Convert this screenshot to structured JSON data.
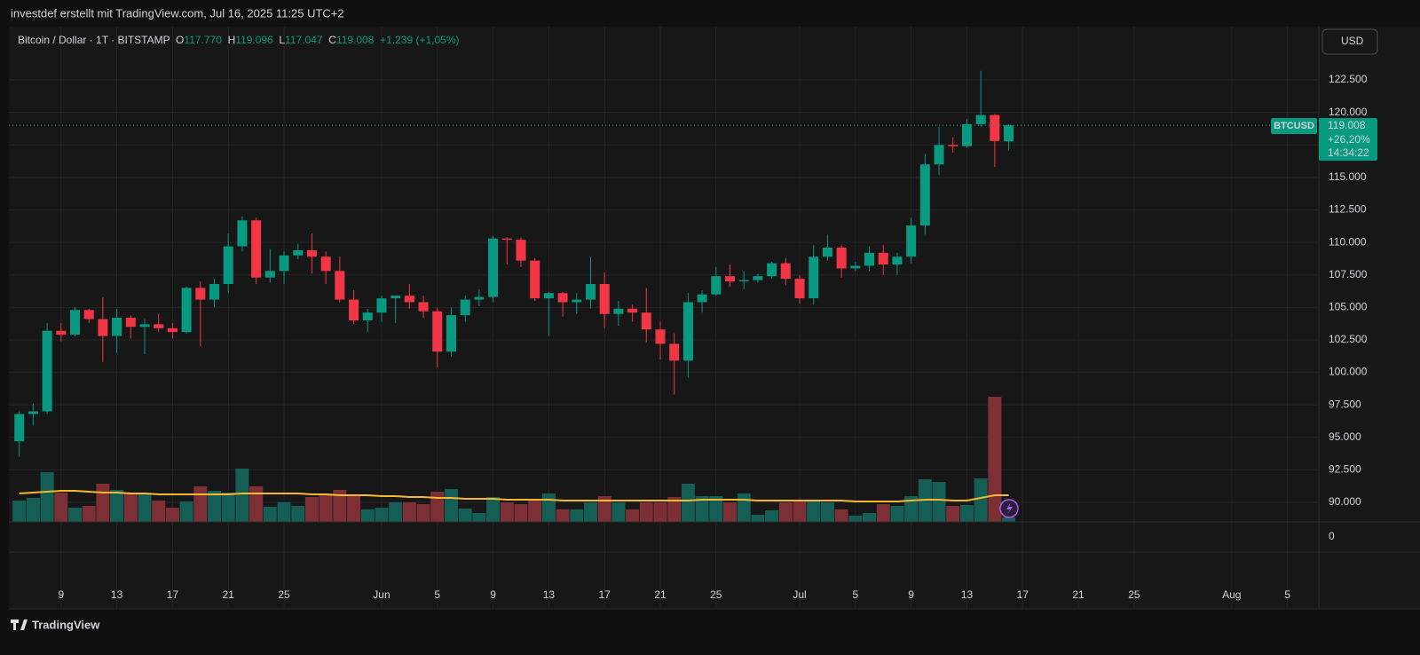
{
  "header": "investdef erstellt mit TradingView.com, Jul 16, 2025 11:25 UTC+2",
  "legend": {
    "symbol": "Bitcoin / Dollar · 1T · BITSTAMP",
    "items": [
      {
        "label": "O",
        "value": "117.770"
      },
      {
        "label": "H",
        "value": "119.096"
      },
      {
        "label": "L",
        "value": "117.047"
      },
      {
        "label": "C",
        "value": "119.008"
      }
    ],
    "change": "+1.239 (+1,05%)"
  },
  "currency_button": "USD",
  "price_tag": {
    "symbol": "BTCUSD",
    "price": "119.008",
    "change": "+26,20%",
    "countdown": "14:34:22"
  },
  "footer": "TradingView",
  "chart_data": {
    "type": "candlestick",
    "x": [
      "2025-05-06",
      "2025-05-07",
      "2025-05-08",
      "2025-05-09",
      "2025-05-10",
      "2025-05-11",
      "2025-05-12",
      "2025-05-13",
      "2025-05-14",
      "2025-05-15",
      "2025-05-16",
      "2025-05-17",
      "2025-05-18",
      "2025-05-19",
      "2025-05-20",
      "2025-05-21",
      "2025-05-22",
      "2025-05-23",
      "2025-05-24",
      "2025-05-25",
      "2025-05-26",
      "2025-05-27",
      "2025-05-28",
      "2025-05-29",
      "2025-05-30",
      "2025-05-31",
      "2025-06-01",
      "2025-06-02",
      "2025-06-03",
      "2025-06-04",
      "2025-06-05",
      "2025-06-06",
      "2025-06-07",
      "2025-06-08",
      "2025-06-09",
      "2025-06-10",
      "2025-06-11",
      "2025-06-12",
      "2025-06-13",
      "2025-06-14",
      "2025-06-15",
      "2025-06-16",
      "2025-06-17",
      "2025-06-18",
      "2025-06-19",
      "2025-06-20",
      "2025-06-21",
      "2025-06-22",
      "2025-06-23",
      "2025-06-24",
      "2025-06-25",
      "2025-06-26",
      "2025-06-27",
      "2025-06-28",
      "2025-06-29",
      "2025-06-30",
      "2025-07-01",
      "2025-07-02",
      "2025-07-03",
      "2025-07-04",
      "2025-07-05",
      "2025-07-06",
      "2025-07-07",
      "2025-07-08",
      "2025-07-09",
      "2025-07-10",
      "2025-07-11",
      "2025-07-12",
      "2025-07-13",
      "2025-07-14",
      "2025-07-15",
      "2025-07-16"
    ],
    "open": [
      94700,
      96800,
      97000,
      103200,
      102900,
      104800,
      104100,
      102800,
      104200,
      103500,
      103700,
      103400,
      103100,
      106500,
      105600,
      106800,
      109700,
      111700,
      107300,
      107800,
      109000,
      109400,
      108900,
      107800,
      105600,
      104000,
      104600,
      105700,
      105900,
      105400,
      104700,
      101600,
      104400,
      105600,
      105800,
      110300,
      110200,
      108600,
      105700,
      106100,
      105400,
      105600,
      106800,
      104500,
      104900,
      104600,
      103300,
      102200,
      100900,
      105400,
      106000,
      107400,
      107000,
      107100,
      107400,
      108400,
      107200,
      105700,
      108900,
      109600,
      108000,
      108200,
      109200,
      108300,
      108900,
      111300,
      116000,
      117500,
      117400,
      119100,
      119800,
      117770
    ],
    "high": [
      97000,
      97600,
      103800,
      103800,
      105000,
      104900,
      105800,
      104900,
      104400,
      104100,
      104500,
      103800,
      106600,
      107000,
      107200,
      110700,
      112000,
      111900,
      109500,
      109300,
      109900,
      110700,
      109300,
      108900,
      106300,
      104900,
      105900,
      105900,
      106800,
      105900,
      105000,
      105000,
      105900,
      106400,
      110500,
      110400,
      110400,
      108800,
      106200,
      106200,
      106100,
      108900,
      107700,
      105500,
      105200,
      106500,
      103900,
      103000,
      106100,
      106300,
      108100,
      108300,
      107800,
      107600,
      108500,
      108800,
      107500,
      109800,
      110600,
      109800,
      108500,
      109700,
      109800,
      109200,
      111900,
      116800,
      118900,
      118100,
      119500,
      123200,
      119900,
      119096
    ],
    "low": [
      93500,
      95900,
      96800,
      102400,
      102800,
      103800,
      100800,
      101500,
      102600,
      101400,
      103100,
      102600,
      103000,
      102000,
      105000,
      106100,
      109300,
      106800,
      106900,
      106800,
      108700,
      107600,
      106800,
      105400,
      103700,
      103100,
      103900,
      103800,
      104900,
      104200,
      100400,
      101200,
      103900,
      105100,
      105400,
      108300,
      108100,
      105500,
      102800,
      104300,
      104500,
      104900,
      103400,
      103600,
      103900,
      102300,
      101000,
      98300,
      99600,
      104600,
      105900,
      106600,
      106400,
      106900,
      107200,
      106700,
      105300,
      105200,
      108600,
      107300,
      107800,
      107800,
      107500,
      107500,
      108400,
      110600,
      115200,
      116900,
      117300,
      118900,
      115800,
      117047
    ],
    "close": [
      96800,
      97000,
      103200,
      102900,
      104800,
      104100,
      102800,
      104200,
      103500,
      103700,
      103400,
      103100,
      106500,
      105600,
      106800,
      109700,
      111700,
      107300,
      107800,
      109000,
      109400,
      108900,
      107800,
      105600,
      104000,
      104600,
      105700,
      105900,
      105400,
      104700,
      101600,
      104400,
      105600,
      105800,
      110300,
      110200,
      108600,
      105700,
      106100,
      105400,
      105600,
      106800,
      104500,
      104900,
      104600,
      103300,
      102200,
      100900,
      105400,
      106000,
      107400,
      107000,
      107100,
      107400,
      108400,
      107200,
      105700,
      108900,
      109600,
      108000,
      108200,
      109200,
      108300,
      108900,
      111300,
      116000,
      117500,
      117400,
      119100,
      119800,
      117800,
      119008
    ],
    "volume": [
      24,
      27,
      56,
      33,
      16,
      18,
      43,
      36,
      33,
      33,
      24,
      16,
      23,
      40,
      35,
      33,
      60,
      40,
      17,
      22,
      18,
      28,
      32,
      36,
      30,
      14,
      16,
      22,
      22,
      20,
      34,
      37,
      15,
      10,
      28,
      22,
      20,
      24,
      32,
      14,
      14,
      22,
      29,
      22,
      14,
      22,
      22,
      28,
      43,
      29,
      29,
      22,
      32,
      8,
      13,
      22,
      24,
      24,
      22,
      14,
      7,
      10,
      20,
      18,
      29,
      48,
      45,
      18,
      19,
      49,
      141,
      5
    ],
    "volume_ma": [
      32,
      33,
      34,
      35,
      35,
      34,
      33,
      33,
      32,
      32,
      31,
      31,
      31,
      31,
      31,
      31,
      32,
      32,
      32,
      32,
      32,
      31,
      31,
      30,
      30,
      30,
      29,
      29,
      28,
      28,
      27,
      27,
      26,
      26,
      26,
      25,
      25,
      25,
      25,
      24,
      24,
      24,
      24,
      24,
      24,
      24,
      24,
      24,
      24,
      25,
      25,
      25,
      25,
      24,
      24,
      24,
      24,
      24,
      24,
      24,
      23,
      23,
      23,
      23,
      24,
      25,
      25,
      24,
      24,
      27,
      30,
      30
    ],
    "up_color": "#089981",
    "down_color": "#f23645",
    "up_volume_color": "#155e55",
    "down_volume_color": "#7c3036",
    "ma_color": "#f5b82e",
    "xlim": [
      "2025-05-05",
      "2025-08-07"
    ],
    "ylim": [
      88500,
      126600
    ],
    "volume_lim": [
      0,
      150
    ],
    "pane2_ylim": [
      -1,
      1
    ],
    "pane2_yticks": [
      0
    ],
    "yticks": [
      {
        "value": 90000,
        "label": "90.000"
      },
      {
        "value": 92500,
        "label": "92.500"
      },
      {
        "value": 95000,
        "label": "95.000"
      },
      {
        "value": 97500,
        "label": "97.500"
      },
      {
        "value": 100000,
        "label": "100.000"
      },
      {
        "value": 102500,
        "label": "102.500"
      },
      {
        "value": 105000,
        "label": "105.000"
      },
      {
        "value": 107500,
        "label": "107.500"
      },
      {
        "value": 110000,
        "label": "110.000"
      },
      {
        "value": 112500,
        "label": "112.500"
      },
      {
        "value": 115000,
        "label": "115.000"
      },
      {
        "value": 117500,
        "label": "117.500"
      },
      {
        "value": 120000,
        "label": "120.000"
      },
      {
        "value": 122500,
        "label": "122.500"
      }
    ],
    "xticks": [
      {
        "value": "2025-05-09",
        "label": "9"
      },
      {
        "value": "2025-05-13",
        "label": "13"
      },
      {
        "value": "2025-05-17",
        "label": "17"
      },
      {
        "value": "2025-05-21",
        "label": "21"
      },
      {
        "value": "2025-05-25",
        "label": "25"
      },
      {
        "value": "2025-06-01",
        "label": "Jun"
      },
      {
        "value": "2025-06-05",
        "label": "5"
      },
      {
        "value": "2025-06-09",
        "label": "9"
      },
      {
        "value": "2025-06-13",
        "label": "13"
      },
      {
        "value": "2025-06-17",
        "label": "17"
      },
      {
        "value": "2025-06-21",
        "label": "21"
      },
      {
        "value": "2025-06-25",
        "label": "25"
      },
      {
        "value": "2025-07-01",
        "label": "Jul"
      },
      {
        "value": "2025-07-05",
        "label": "5"
      },
      {
        "value": "2025-07-09",
        "label": "9"
      },
      {
        "value": "2025-07-13",
        "label": "13"
      },
      {
        "value": "2025-07-17",
        "label": "17"
      },
      {
        "value": "2025-07-21",
        "label": "21"
      },
      {
        "value": "2025-07-25",
        "label": "25"
      },
      {
        "value": "2025-08-01",
        "label": "Aug"
      },
      {
        "value": "2025-08-05",
        "label": "5"
      }
    ],
    "grid": true
  }
}
